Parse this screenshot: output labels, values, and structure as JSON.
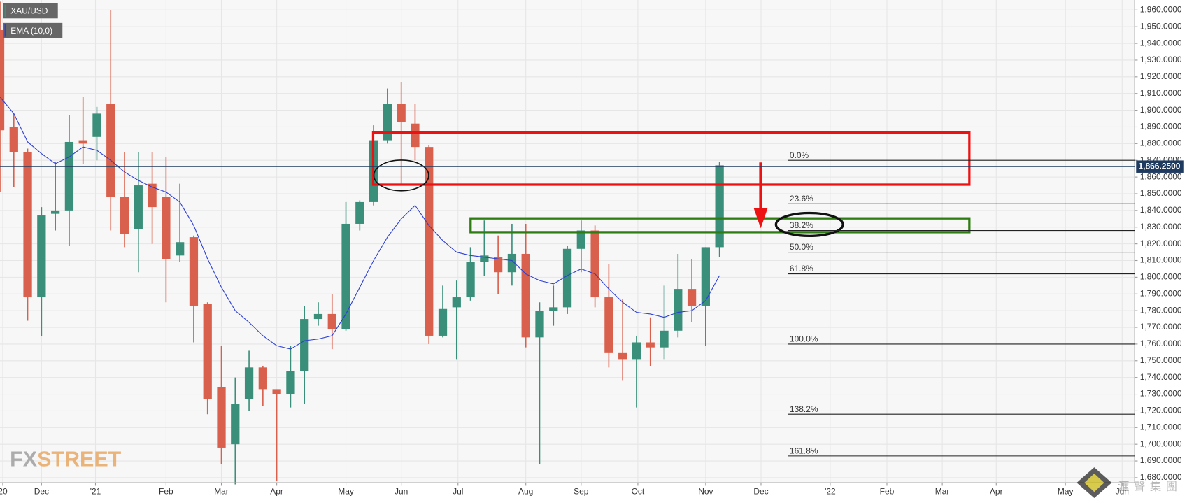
{
  "chart_data": {
    "type": "candlestick",
    "legend": [
      "XAU/USD",
      "EMA (10,0)"
    ],
    "x": [
      0,
      1,
      2,
      3,
      4,
      5,
      6,
      7,
      8,
      9,
      10,
      11,
      12,
      13,
      14,
      15,
      16,
      17,
      18,
      19,
      20,
      21,
      22,
      23,
      24,
      25,
      26,
      27,
      28,
      29,
      30,
      31,
      32,
      33,
      34,
      35,
      36,
      37,
      38,
      39,
      40,
      41,
      42,
      43,
      44,
      45,
      46,
      47,
      48,
      49,
      50,
      51,
      52
    ],
    "open": [
      1948,
      1890,
      1875,
      1788,
      1838,
      1840,
      1882,
      1884,
      1904,
      1848,
      1829,
      1856,
      1848,
      1813,
      1824,
      1784,
      1734,
      1700,
      1727,
      1746,
      1733,
      1730,
      1744,
      1775,
      1778,
      1769,
      1832,
      1845,
      1882,
      1904,
      1892,
      1878,
      1765,
      1782,
      1788,
      1809,
      1812,
      1803,
      1814,
      1764,
      1780,
      1782,
      1817,
      1828,
      1788,
      1755,
      1751,
      1761,
      1758,
      1768,
      1793,
      1783,
      1818
    ],
    "high": [
      1965,
      1898,
      1877,
      1842,
      1869,
      1897,
      1908,
      1902,
      1960,
      1875,
      1875,
      1875,
      1872,
      1856,
      1825,
      1785,
      1759,
      1740,
      1756,
      1747,
      1732,
      1759,
      1783,
      1785,
      1790,
      1845,
      1846,
      1891,
      1913,
      1917,
      1904,
      1879,
      1795,
      1798,
      1818,
      1834,
      1825,
      1832,
      1832,
      1785,
      1795,
      1819,
      1834,
      1831,
      1808,
      1787,
      1765,
      1776,
      1795,
      1814,
      1811,
      1818,
      1869
    ],
    "low": [
      1851,
      1854,
      1774,
      1765,
      1828,
      1819,
      1868,
      1870,
      1828,
      1818,
      1803,
      1820,
      1785,
      1809,
      1761,
      1718,
      1688,
      1676,
      1720,
      1723,
      1678,
      1722,
      1724,
      1771,
      1757,
      1768,
      1828,
      1843,
      1880,
      1856,
      1870,
      1760,
      1764,
      1751,
      1786,
      1801,
      1790,
      1795,
      1758,
      1688,
      1771,
      1778,
      1803,
      1782,
      1746,
      1738,
      1722,
      1747,
      1751,
      1764,
      1773,
      1759,
      1812
    ],
    "close": [
      1888,
      1875,
      1788,
      1837,
      1840,
      1881,
      1880,
      1898,
      1848,
      1826,
      1855,
      1842,
      1811,
      1821,
      1783,
      1727,
      1698,
      1724,
      1746,
      1733,
      1730,
      1744,
      1775,
      1778,
      1769,
      1832,
      1845,
      1882,
      1904,
      1893,
      1878,
      1765,
      1781,
      1788,
      1809,
      1813,
      1803,
      1814,
      1764,
      1780,
      1782,
      1817,
      1828,
      1788,
      1755,
      1751,
      1761,
      1758,
      1768,
      1793,
      1783,
      1818,
      1867
    ],
    "ema": [
      1908,
      1898,
      1881,
      1874,
      1868,
      1872,
      1878,
      1876,
      1870,
      1863,
      1858,
      1854,
      1851,
      1845,
      1831,
      1811,
      1794,
      1780,
      1773,
      1765,
      1759,
      1757,
      1762,
      1763,
      1765,
      1778,
      1794,
      1810,
      1824,
      1835,
      1843,
      1831,
      1822,
      1815,
      1813,
      1812,
      1811,
      1810,
      1802,
      1798,
      1796,
      1801,
      1805,
      1802,
      1793,
      1785,
      1779,
      1778,
      1776,
      1779,
      1780,
      1786,
      1801
    ],
    "up_color": "#3a8f7a",
    "down_color": "#d9604c",
    "ema_color": "#2b3fd6",
    "last_price": {
      "value": 1866.25,
      "label": "1,866.2500"
    },
    "fib": {
      "labels": [
        "0.0%",
        "23.6%",
        "38.2%",
        "50.0%",
        "61.8%",
        "100.0%",
        "138.2%",
        "161.8%"
      ],
      "prices": [
        1870,
        1844,
        1828,
        1815,
        1802,
        1760,
        1718,
        1693
      ]
    },
    "xlim": [
      0,
      82
    ],
    "ylim": [
      1677,
      1966
    ],
    "grid": true,
    "xticks": [
      {
        "value": 0.2,
        "label": "20"
      },
      {
        "value": 3,
        "label": "Dec"
      },
      {
        "value": 6.9,
        "label": "'21"
      },
      {
        "value": 12,
        "label": "Feb"
      },
      {
        "value": 16,
        "label": "Mar"
      },
      {
        "value": 20,
        "label": "Apr"
      },
      {
        "value": 25,
        "label": "May"
      },
      {
        "value": 29,
        "label": "Jun"
      },
      {
        "value": 33.1,
        "label": "Jul"
      },
      {
        "value": 38,
        "label": "Aug"
      },
      {
        "value": 42,
        "label": "Sep"
      },
      {
        "value": 46.1,
        "label": "Oct"
      },
      {
        "value": 51,
        "label": "Nov"
      },
      {
        "value": 55,
        "label": "Dec"
      },
      {
        "value": 60,
        "label": "'22"
      },
      {
        "value": 64.1,
        "label": "Feb"
      },
      {
        "value": 68.1,
        "label": "Mar"
      },
      {
        "value": 72,
        "label": "Apr"
      },
      {
        "value": 77,
        "label": "May"
      },
      {
        "value": 81.1,
        "label": "Jun"
      }
    ],
    "yticks": [
      {
        "value": 1680,
        "label": "1,680.0000"
      },
      {
        "value": 1690,
        "label": "1,690.0000"
      },
      {
        "value": 1700,
        "label": "1,700.0000"
      },
      {
        "value": 1710,
        "label": "1,710.0000"
      },
      {
        "value": 1720,
        "label": "1,720.0000"
      },
      {
        "value": 1730,
        "label": "1,730.0000"
      },
      {
        "value": 1740,
        "label": "1,740.0000"
      },
      {
        "value": 1750,
        "label": "1,750.0000"
      },
      {
        "value": 1760,
        "label": "1,760.0000"
      },
      {
        "value": 1770,
        "label": "1,770.0000"
      },
      {
        "value": 1780,
        "label": "1,780.0000"
      },
      {
        "value": 1790,
        "label": "1,790.0000"
      },
      {
        "value": 1800,
        "label": "1,800.0000"
      },
      {
        "value": 1810,
        "label": "1,810.0000"
      },
      {
        "value": 1820,
        "label": "1,820.0000"
      },
      {
        "value": 1830,
        "label": "1,830.0000"
      },
      {
        "value": 1840,
        "label": "1,840.0000"
      },
      {
        "value": 1850,
        "label": "1,850.0000"
      },
      {
        "value": 1860,
        "label": "1,860.0000"
      },
      {
        "value": 1870,
        "label": "1,870.0000"
      },
      {
        "value": 1880,
        "label": "1,880.0000"
      },
      {
        "value": 1890,
        "label": "1,890.0000"
      },
      {
        "value": 1900,
        "label": "1,900.0000"
      },
      {
        "value": 1910,
        "label": "1,910.0000"
      },
      {
        "value": 1920,
        "label": "1,920.0000"
      },
      {
        "value": 1930,
        "label": "1,930.0000"
      },
      {
        "value": 1940,
        "label": "1,940.0000"
      },
      {
        "value": 1950,
        "label": "1,950.0000"
      },
      {
        "value": 1960,
        "label": "1,960.0000"
      }
    ],
    "logo": [
      "FX",
      "STREET"
    ],
    "watermark": "滙聲集團"
  }
}
